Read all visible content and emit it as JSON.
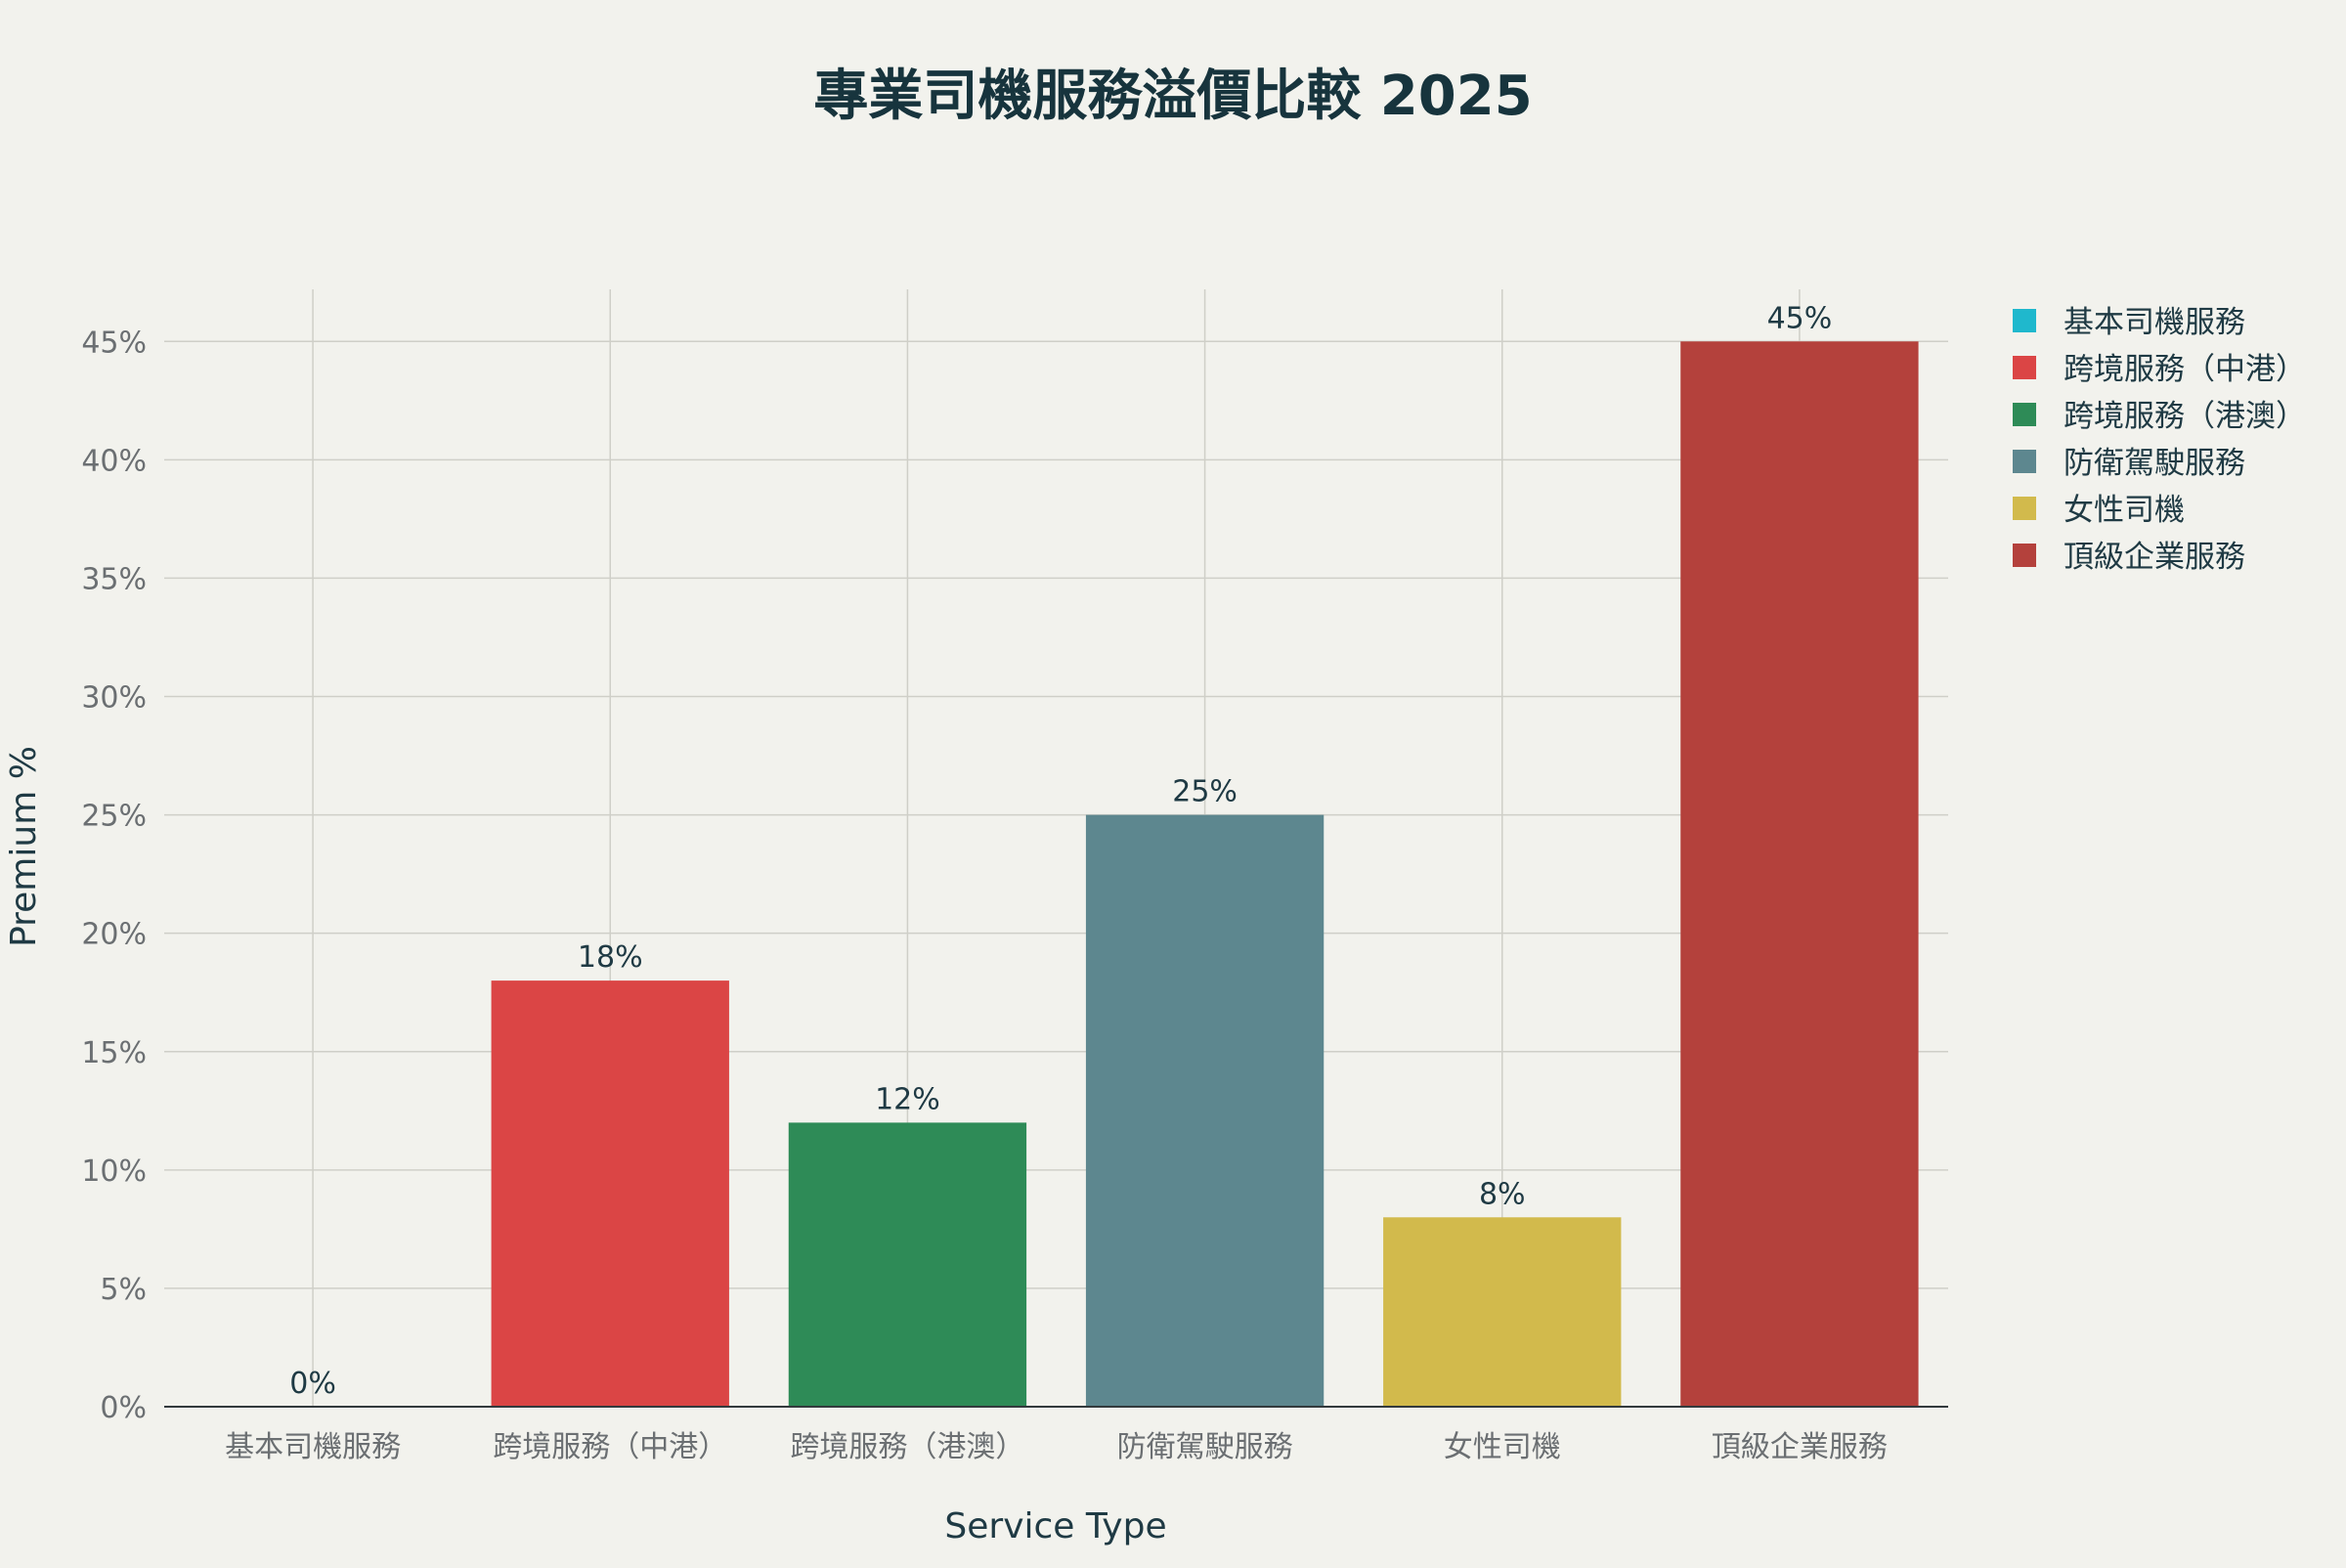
{
  "chart_data": {
    "type": "bar",
    "title": "專業司機服務溢價比較 2025",
    "xlabel": "Service Type",
    "ylabel": "Premium %",
    "categories": [
      "基本司機服務",
      "跨境服務（中港）",
      "跨境服務（港澳）",
      "防衛駕駛服務",
      "女性司機",
      "頂級企業服務"
    ],
    "values": [
      0,
      18,
      12,
      25,
      8,
      45
    ],
    "value_suffix": "%",
    "colors": [
      "#1fb8cd",
      "#db4545",
      "#2e8b57",
      "#5d878f",
      "#d2ba4c",
      "#b4413c"
    ],
    "ylim": [
      0,
      47.2
    ],
    "yticks": [
      0,
      5,
      10,
      15,
      20,
      25,
      30,
      35,
      40,
      45
    ],
    "ytick_labels": [
      "0%",
      "5%",
      "10%",
      "15%",
      "20%",
      "25%",
      "30%",
      "35%",
      "40%",
      "45%"
    ],
    "grid": true,
    "legend": {
      "placement": "top-right",
      "entries": [
        "基本司機服務",
        "跨境服務（中港）",
        "跨境服務（港澳）",
        "防衛駕駛服務",
        "女性司機",
        "頂級企業服務"
      ]
    }
  }
}
